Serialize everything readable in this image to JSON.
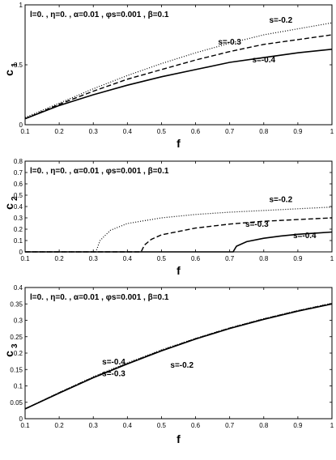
{
  "chart_data": [
    {
      "type": "line",
      "ylabel_main": "c",
      "ylabel_sub": "1",
      "xlabel": "f",
      "xlim": [
        0.1,
        1.0
      ],
      "ylim": [
        0,
        1.0
      ],
      "xticks": [
        "0.1",
        "0.2",
        "0.3",
        "0.4",
        "0.5",
        "0.6",
        "0.7",
        "0.8",
        "0.9",
        "1"
      ],
      "yticks": [
        "0",
        "0.5",
        "1"
      ],
      "params": "l=0. , η=0. , α=0.01 , φs=0.001 , β=0.1",
      "series": [
        {
          "name": "s=-0.2",
          "style": "dotted",
          "x": [
            0.1,
            0.2,
            0.3,
            0.4,
            0.5,
            0.6,
            0.7,
            0.8,
            0.9,
            1.0
          ],
          "y": [
            0.06,
            0.18,
            0.3,
            0.41,
            0.51,
            0.6,
            0.68,
            0.75,
            0.8,
            0.85
          ]
        },
        {
          "name": "s=-0.3",
          "style": "dashed",
          "x": [
            0.1,
            0.2,
            0.3,
            0.4,
            0.5,
            0.6,
            0.7,
            0.8,
            0.9,
            1.0
          ],
          "y": [
            0.05,
            0.17,
            0.28,
            0.38,
            0.46,
            0.54,
            0.61,
            0.67,
            0.71,
            0.75
          ]
        },
        {
          "name": "s=-0.4",
          "style": "solid",
          "x": [
            0.1,
            0.2,
            0.3,
            0.4,
            0.5,
            0.6,
            0.7,
            0.8,
            0.9,
            1.0
          ],
          "y": [
            0.05,
            0.16,
            0.25,
            0.33,
            0.4,
            0.46,
            0.52,
            0.56,
            0.6,
            0.63
          ]
        }
      ],
      "annotations": [
        {
          "text": "s=-0.2",
          "x": 0.85,
          "y": 0.85
        },
        {
          "text": "s=-0.3",
          "x": 0.7,
          "y": 0.67
        },
        {
          "text": "s=-0.4",
          "x": 0.8,
          "y": 0.52
        }
      ]
    },
    {
      "type": "line",
      "ylabel_main": "c",
      "ylabel_sub": "2",
      "xlabel": "f",
      "xlim": [
        0.1,
        1.0
      ],
      "ylim": [
        0,
        0.8
      ],
      "xticks": [
        "0.1",
        "0.2",
        "0.3",
        "0.4",
        "0.5",
        "0.6",
        "0.7",
        "0.8",
        "0.9",
        "1"
      ],
      "yticks": [
        "0",
        "0.1",
        "0.2",
        "0.3",
        "0.4",
        "0.5",
        "0.6",
        "0.7",
        "0.8"
      ],
      "params": "l=0. , η=0. , α=0.01 , φs=0.001 , β=0.1",
      "series": [
        {
          "name": "s=-0.2",
          "style": "dotted",
          "x": [
            0.1,
            0.308,
            0.31,
            0.32,
            0.35,
            0.4,
            0.5,
            0.6,
            0.7,
            0.8,
            0.9,
            1.0
          ],
          "y": [
            0,
            0,
            0.02,
            0.1,
            0.19,
            0.25,
            0.3,
            0.33,
            0.35,
            0.365,
            0.38,
            0.395
          ]
        },
        {
          "name": "s=-0.3",
          "style": "dashed",
          "x": [
            0.1,
            0.44,
            0.442,
            0.45,
            0.47,
            0.5,
            0.6,
            0.7,
            0.8,
            0.9,
            1.0
          ],
          "y": [
            0,
            0,
            0.01,
            0.06,
            0.11,
            0.15,
            0.21,
            0.245,
            0.27,
            0.285,
            0.3
          ]
        },
        {
          "name": "s=-0.4",
          "style": "solid",
          "x": [
            0.1,
            0.71,
            0.712,
            0.72,
            0.75,
            0.8,
            0.85,
            0.9,
            0.95,
            1.0
          ],
          "y": [
            0,
            0,
            0.01,
            0.05,
            0.09,
            0.12,
            0.14,
            0.155,
            0.165,
            0.175
          ]
        }
      ],
      "annotations": [
        {
          "text": "s=-0.2",
          "x": 0.85,
          "y": 0.44
        },
        {
          "text": "s=-0.3",
          "x": 0.78,
          "y": 0.22
        },
        {
          "text": "s=-0.4",
          "x": 0.92,
          "y": 0.12
        }
      ]
    },
    {
      "type": "line",
      "ylabel_main": "c",
      "ylabel_sub": "3",
      "xlabel": "f",
      "xlim": [
        0.1,
        1.0
      ],
      "ylim": [
        0,
        0.4
      ],
      "xticks": [
        "0.1",
        "0.2",
        "0.3",
        "0.4",
        "0.5",
        "0.6",
        "0.7",
        "0.8",
        "0.9",
        "1"
      ],
      "yticks": [
        "0",
        "0.05",
        "0.1",
        "0.15",
        "0.2",
        "0.25",
        "0.3",
        "0.35",
        "0.4"
      ],
      "params": "l=0. , η=0. , α=0.01 , φs=0.001 , β=0.1",
      "series": [
        {
          "name": "s=-0.2",
          "style": "dotted",
          "x": [
            0.1,
            0.2,
            0.3,
            0.4,
            0.5,
            0.6,
            0.7,
            0.8,
            0.9,
            1.0
          ],
          "y": [
            0.03,
            0.08,
            0.128,
            0.17,
            0.21,
            0.245,
            0.277,
            0.305,
            0.33,
            0.352
          ]
        },
        {
          "name": "s=-0.3",
          "style": "dashed",
          "x": [
            0.1,
            0.2,
            0.3,
            0.4,
            0.5,
            0.6,
            0.7,
            0.8,
            0.9,
            1.0
          ],
          "y": [
            0.03,
            0.079,
            0.126,
            0.168,
            0.208,
            0.244,
            0.276,
            0.304,
            0.329,
            0.351
          ]
        },
        {
          "name": "s=-0.4",
          "style": "solid",
          "x": [
            0.1,
            0.2,
            0.3,
            0.4,
            0.5,
            0.6,
            0.7,
            0.8,
            0.9,
            1.0
          ],
          "y": [
            0.03,
            0.078,
            0.125,
            0.167,
            0.207,
            0.243,
            0.275,
            0.303,
            0.328,
            0.35
          ]
        }
      ],
      "annotations": [
        {
          "text": "s=-0.4",
          "x": 0.36,
          "y": 0.165
        },
        {
          "text": "s=-0.3",
          "x": 0.36,
          "y": 0.13
        },
        {
          "text": "s=-0.2",
          "x": 0.56,
          "y": 0.155
        }
      ]
    }
  ]
}
